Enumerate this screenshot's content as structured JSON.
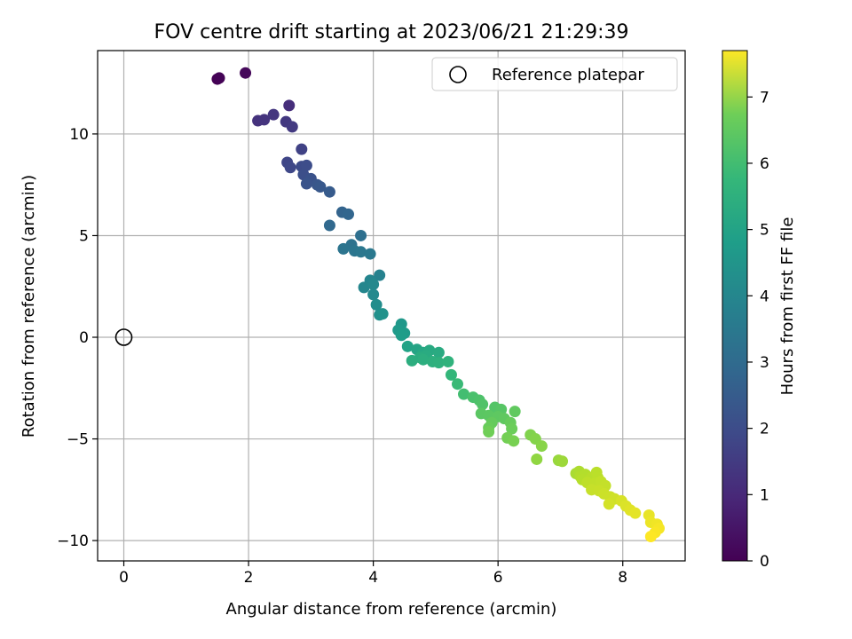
{
  "chart_data": {
    "type": "scatter",
    "title": "FOV centre drift starting at 2023/06/21 21:29:39",
    "xlabel": "Angular distance from reference (arcmin)",
    "ylabel": "Rotation from reference (arcmin)",
    "xlim": [
      -0.42,
      9.0
    ],
    "ylim": [
      -11.0,
      14.1
    ],
    "xticks": [
      0,
      2,
      4,
      6,
      8
    ],
    "xtick_labels": [
      "0",
      "2",
      "4",
      "6",
      "8"
    ],
    "yticks": [
      10,
      5,
      0,
      -5,
      -10
    ],
    "ytick_labels": [
      "10",
      "5",
      "0",
      "−5",
      "−10"
    ],
    "grid": true,
    "legend": {
      "position": "top-right",
      "entries": [
        {
          "label": "Reference platepar",
          "marker": "open-circle"
        }
      ]
    },
    "reference_point": {
      "x": 0,
      "y": 0
    },
    "colorbar": {
      "label": "Hours from first FF file",
      "colormap": "viridis",
      "range": [
        0,
        7.7
      ],
      "ticks": [
        0,
        1,
        2,
        3,
        4,
        5,
        6,
        7
      ],
      "tick_labels": [
        "0",
        "1",
        "2",
        "3",
        "4",
        "5",
        "6",
        "7"
      ]
    },
    "series": [
      {
        "points": [
          {
            "x": 1.5,
            "y": 12.7,
            "c": 0.0
          },
          {
            "x": 1.53,
            "y": 12.75,
            "c": 0.05
          },
          {
            "x": 1.95,
            "y": 13.0,
            "c": 0.15
          },
          {
            "x": 2.65,
            "y": 11.4,
            "c": 1.0
          },
          {
            "x": 2.15,
            "y": 10.65,
            "c": 1.1
          },
          {
            "x": 2.25,
            "y": 10.7,
            "c": 1.15
          },
          {
            "x": 2.4,
            "y": 10.95,
            "c": 1.2
          },
          {
            "x": 2.6,
            "y": 10.6,
            "c": 1.25
          },
          {
            "x": 2.7,
            "y": 10.35,
            "c": 1.3
          },
          {
            "x": 2.85,
            "y": 9.25,
            "c": 1.5
          },
          {
            "x": 2.62,
            "y": 8.6,
            "c": 1.6
          },
          {
            "x": 2.67,
            "y": 8.35,
            "c": 1.65
          },
          {
            "x": 2.85,
            "y": 8.4,
            "c": 1.75
          },
          {
            "x": 2.93,
            "y": 8.45,
            "c": 1.8
          },
          {
            "x": 2.88,
            "y": 8.0,
            "c": 1.85
          },
          {
            "x": 3.0,
            "y": 7.8,
            "c": 1.95
          },
          {
            "x": 2.93,
            "y": 7.55,
            "c": 2.0
          },
          {
            "x": 3.1,
            "y": 7.5,
            "c": 2.05
          },
          {
            "x": 3.15,
            "y": 7.4,
            "c": 2.1
          },
          {
            "x": 3.3,
            "y": 7.15,
            "c": 2.2
          },
          {
            "x": 3.5,
            "y": 6.15,
            "c": 2.45
          },
          {
            "x": 3.6,
            "y": 6.05,
            "c": 2.5
          },
          {
            "x": 3.3,
            "y": 5.5,
            "c": 2.6
          },
          {
            "x": 3.8,
            "y": 5.0,
            "c": 2.8
          },
          {
            "x": 3.65,
            "y": 4.55,
            "c": 2.9
          },
          {
            "x": 3.52,
            "y": 4.35,
            "c": 2.95
          },
          {
            "x": 3.7,
            "y": 4.25,
            "c": 3.0
          },
          {
            "x": 3.8,
            "y": 4.2,
            "c": 3.05
          },
          {
            "x": 3.95,
            "y": 4.1,
            "c": 3.1
          },
          {
            "x": 4.1,
            "y": 3.05,
            "c": 3.4
          },
          {
            "x": 3.95,
            "y": 2.8,
            "c": 3.5
          },
          {
            "x": 3.85,
            "y": 2.45,
            "c": 3.55
          },
          {
            "x": 4.0,
            "y": 2.6,
            "c": 3.6
          },
          {
            "x": 4.0,
            "y": 2.1,
            "c": 3.65
          },
          {
            "x": 4.05,
            "y": 1.6,
            "c": 3.75
          },
          {
            "x": 4.1,
            "y": 1.1,
            "c": 3.85
          },
          {
            "x": 4.15,
            "y": 1.15,
            "c": 3.9
          },
          {
            "x": 4.45,
            "y": 0.65,
            "c": 4.1
          },
          {
            "x": 4.4,
            "y": 0.35,
            "c": 4.15
          },
          {
            "x": 4.5,
            "y": 0.2,
            "c": 4.2
          },
          {
            "x": 4.45,
            "y": 0.1,
            "c": 4.25
          },
          {
            "x": 4.55,
            "y": -0.45,
            "c": 4.45
          },
          {
            "x": 4.7,
            "y": -0.6,
            "c": 4.5
          },
          {
            "x": 4.8,
            "y": -0.75,
            "c": 4.6
          },
          {
            "x": 4.9,
            "y": -0.65,
            "c": 4.65
          },
          {
            "x": 5.05,
            "y": -0.75,
            "c": 4.7
          },
          {
            "x": 4.85,
            "y": -0.9,
            "c": 4.72
          },
          {
            "x": 4.75,
            "y": -1.0,
            "c": 4.75
          },
          {
            "x": 4.62,
            "y": -1.15,
            "c": 4.8
          },
          {
            "x": 4.8,
            "y": -1.1,
            "c": 4.82
          },
          {
            "x": 4.95,
            "y": -1.2,
            "c": 4.85
          },
          {
            "x": 5.05,
            "y": -1.25,
            "c": 4.9
          },
          {
            "x": 5.2,
            "y": -1.2,
            "c": 4.95
          },
          {
            "x": 5.25,
            "y": -1.85,
            "c": 5.1
          },
          {
            "x": 5.35,
            "y": -2.3,
            "c": 5.2
          },
          {
            "x": 5.45,
            "y": -2.8,
            "c": 5.35
          },
          {
            "x": 5.6,
            "y": -2.95,
            "c": 5.45
          },
          {
            "x": 5.7,
            "y": -3.1,
            "c": 5.5
          },
          {
            "x": 5.75,
            "y": -3.3,
            "c": 5.55
          },
          {
            "x": 5.95,
            "y": -3.45,
            "c": 5.6
          },
          {
            "x": 6.05,
            "y": -3.55,
            "c": 5.65
          },
          {
            "x": 5.73,
            "y": -3.75,
            "c": 5.7
          },
          {
            "x": 5.85,
            "y": -3.85,
            "c": 5.72
          },
          {
            "x": 6.0,
            "y": -3.9,
            "c": 5.75
          },
          {
            "x": 6.1,
            "y": -4.0,
            "c": 5.78
          },
          {
            "x": 6.27,
            "y": -3.65,
            "c": 5.8
          },
          {
            "x": 5.9,
            "y": -4.2,
            "c": 5.85
          },
          {
            "x": 6.2,
            "y": -4.2,
            "c": 5.88
          },
          {
            "x": 5.85,
            "y": -4.45,
            "c": 5.9
          },
          {
            "x": 6.22,
            "y": -4.5,
            "c": 5.95
          },
          {
            "x": 5.85,
            "y": -4.65,
            "c": 6.0
          },
          {
            "x": 6.15,
            "y": -4.95,
            "c": 6.05
          },
          {
            "x": 6.25,
            "y": -5.1,
            "c": 6.1
          },
          {
            "x": 6.52,
            "y": -4.8,
            "c": 6.2
          },
          {
            "x": 6.6,
            "y": -5.0,
            "c": 6.25
          },
          {
            "x": 6.7,
            "y": -5.35,
            "c": 6.3
          },
          {
            "x": 6.62,
            "y": -6.0,
            "c": 6.4
          },
          {
            "x": 6.97,
            "y": -6.05,
            "c": 6.5
          },
          {
            "x": 7.03,
            "y": -6.1,
            "c": 6.55
          },
          {
            "x": 7.25,
            "y": -6.7,
            "c": 6.7
          },
          {
            "x": 7.3,
            "y": -6.6,
            "c": 6.75
          },
          {
            "x": 7.32,
            "y": -6.85,
            "c": 6.8
          },
          {
            "x": 7.4,
            "y": -6.75,
            "c": 6.82
          },
          {
            "x": 7.35,
            "y": -7.0,
            "c": 6.85
          },
          {
            "x": 7.5,
            "y": -6.9,
            "c": 6.88
          },
          {
            "x": 7.58,
            "y": -6.65,
            "c": 6.9
          },
          {
            "x": 7.6,
            "y": -6.9,
            "c": 6.92
          },
          {
            "x": 7.43,
            "y": -7.15,
            "c": 6.95
          },
          {
            "x": 7.55,
            "y": -7.2,
            "c": 6.97
          },
          {
            "x": 7.65,
            "y": -7.1,
            "c": 7.0
          },
          {
            "x": 7.72,
            "y": -7.3,
            "c": 7.02
          },
          {
            "x": 7.5,
            "y": -7.5,
            "c": 7.05
          },
          {
            "x": 7.62,
            "y": -7.55,
            "c": 7.07
          },
          {
            "x": 7.7,
            "y": -7.7,
            "c": 7.1
          },
          {
            "x": 7.8,
            "y": -7.85,
            "c": 7.12
          },
          {
            "x": 7.87,
            "y": -7.95,
            "c": 7.15
          },
          {
            "x": 7.78,
            "y": -8.2,
            "c": 7.2
          },
          {
            "x": 7.98,
            "y": -8.05,
            "c": 7.25
          },
          {
            "x": 8.05,
            "y": -8.3,
            "c": 7.3
          },
          {
            "x": 8.12,
            "y": -8.5,
            "c": 7.35
          },
          {
            "x": 8.2,
            "y": -8.65,
            "c": 7.4
          },
          {
            "x": 8.42,
            "y": -8.75,
            "c": 7.45
          },
          {
            "x": 8.45,
            "y": -9.1,
            "c": 7.5
          },
          {
            "x": 8.55,
            "y": -9.2,
            "c": 7.55
          },
          {
            "x": 8.58,
            "y": -9.4,
            "c": 7.6
          },
          {
            "x": 8.52,
            "y": -9.6,
            "c": 7.65
          },
          {
            "x": 8.45,
            "y": -9.8,
            "c": 7.7
          }
        ]
      }
    ]
  }
}
